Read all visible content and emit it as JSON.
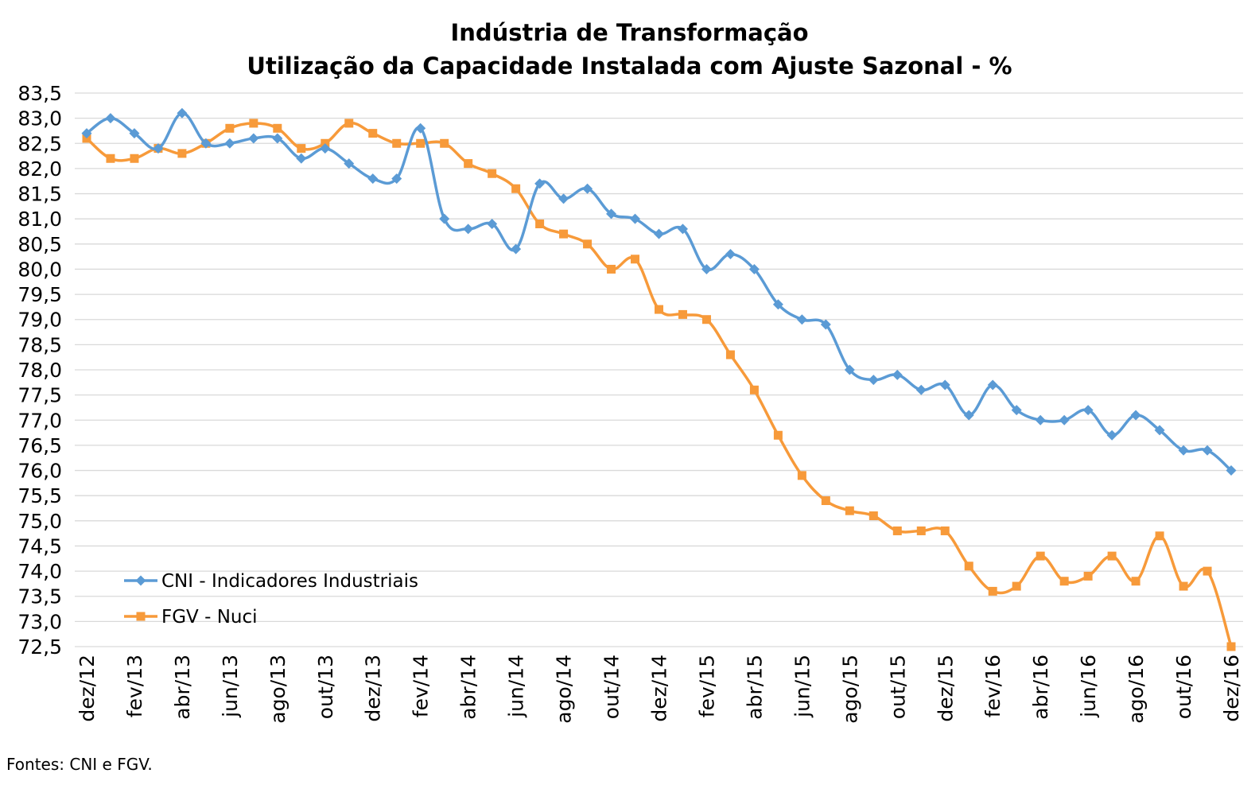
{
  "chart_data": {
    "type": "line",
    "title": "Indústria de Transformação",
    "subtitle": "Utilização da Capacidade Instalada com Ajuste Sazonal - %",
    "source": "Fontes: CNI e FGV.",
    "xlabel": "",
    "ylabel": "",
    "ylim": [
      72.5,
      83.5
    ],
    "y_ticks": [
      "72,5",
      "73,0",
      "73,5",
      "74,0",
      "74,5",
      "75,0",
      "75,5",
      "76,0",
      "76,5",
      "77,0",
      "77,5",
      "78,0",
      "78,5",
      "79,0",
      "79,5",
      "80,0",
      "80,5",
      "81,0",
      "81,5",
      "82,0",
      "82,5",
      "83,0",
      "83,5"
    ],
    "grid": true,
    "legend_position": "bottom-left",
    "x": [
      "dez/12",
      "jan/13",
      "fev/13",
      "mar/13",
      "abr/13",
      "mai/13",
      "jun/13",
      "jul/13",
      "ago/13",
      "set/13",
      "out/13",
      "nov/13",
      "dez/13",
      "jan/14",
      "fev/14",
      "mar/14",
      "abr/14",
      "mai/14",
      "jun/14",
      "jul/14",
      "ago/14",
      "set/14",
      "out/14",
      "nov/14",
      "dez/14",
      "jan/15",
      "fev/15",
      "mar/15",
      "abr/15",
      "mai/15",
      "jun/15",
      "jul/15",
      "ago/15",
      "set/15",
      "out/15",
      "nov/15",
      "dez/15",
      "jan/16",
      "fev/16",
      "mar/16",
      "abr/16",
      "mai/16",
      "jun/16",
      "jul/16",
      "ago/16",
      "set/16",
      "out/16",
      "nov/16",
      "dez/16"
    ],
    "x_tick_labels": [
      "dez/12",
      "fev/13",
      "abr/13",
      "jun/13",
      "ago/13",
      "out/13",
      "dez/13",
      "fev/14",
      "abr/14",
      "jun/14",
      "ago/14",
      "out/14",
      "dez/14",
      "fev/15",
      "abr/15",
      "jun/15",
      "ago/15",
      "out/15",
      "dez/15",
      "fev/16",
      "abr/16",
      "jun/16",
      "ago/16",
      "out/16",
      "dez/16"
    ],
    "series": [
      {
        "name": "CNI - Indicadores Industriais",
        "color": "#5B9BD5",
        "marker": "diamond",
        "values": [
          82.7,
          83.0,
          82.7,
          82.4,
          83.1,
          82.5,
          82.5,
          82.6,
          82.6,
          82.2,
          82.4,
          82.1,
          81.8,
          81.8,
          82.8,
          81.0,
          80.8,
          80.9,
          80.4,
          81.7,
          81.4,
          81.6,
          81.1,
          81.0,
          80.7,
          80.8,
          80.0,
          80.3,
          80.0,
          79.3,
          79.0,
          78.9,
          78.0,
          77.8,
          77.9,
          77.6,
          77.7,
          77.1,
          77.7,
          77.2,
          77.0,
          77.0,
          77.2,
          76.7,
          77.1,
          76.8,
          76.4,
          76.4,
          76.0
        ]
      },
      {
        "name": "FGV - Nuci",
        "color": "#F79A3A",
        "marker": "square",
        "values": [
          82.6,
          82.2,
          82.2,
          82.4,
          82.3,
          82.5,
          82.8,
          82.9,
          82.8,
          82.4,
          82.5,
          82.9,
          82.7,
          82.5,
          82.5,
          82.5,
          82.1,
          81.9,
          81.6,
          80.9,
          80.7,
          80.5,
          80.0,
          80.2,
          79.2,
          79.1,
          79.0,
          78.3,
          77.6,
          76.7,
          75.9,
          75.4,
          75.2,
          75.1,
          74.8,
          74.8,
          74.8,
          74.1,
          73.6,
          73.7,
          74.3,
          73.8,
          73.9,
          74.3,
          73.8,
          74.7,
          73.7,
          74.0,
          72.5
        ]
      }
    ]
  }
}
